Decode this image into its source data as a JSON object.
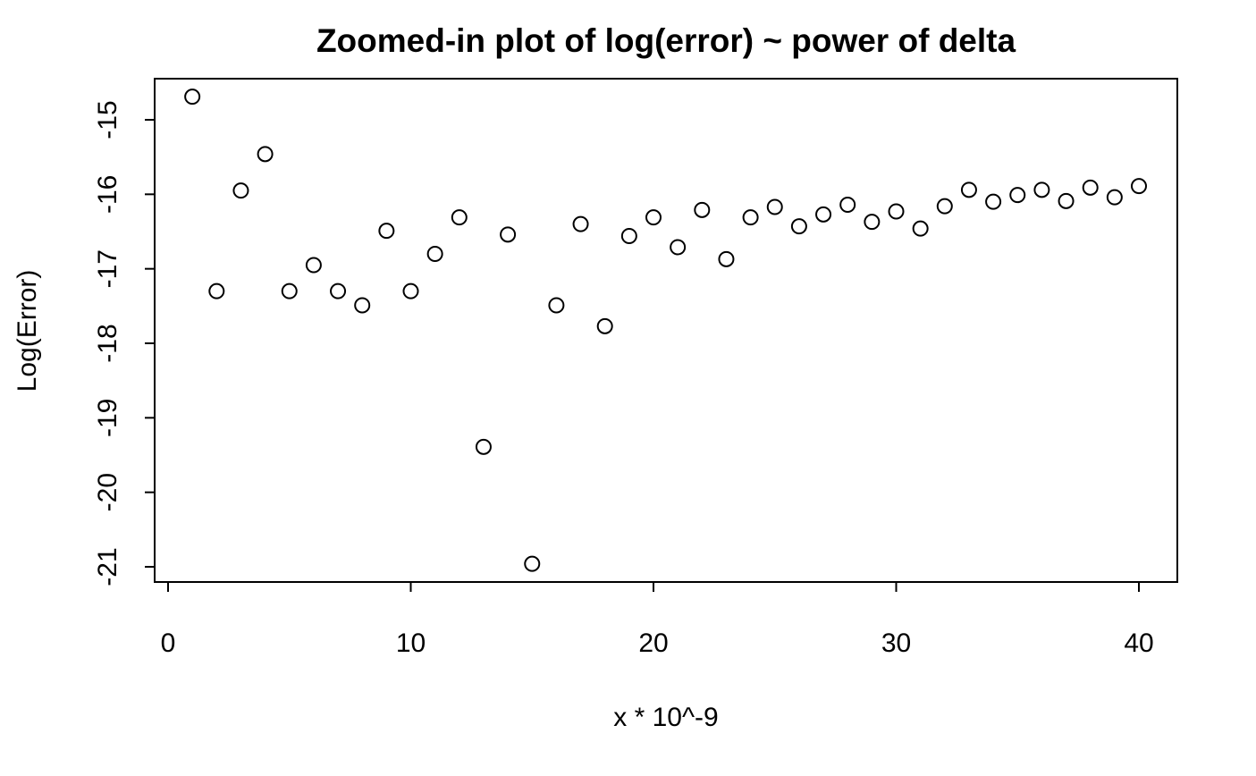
{
  "chart_data": {
    "type": "scatter",
    "title": "Zoomed-in plot of log(error) ~ power of delta",
    "xlabel": "x * 10^-9",
    "ylabel": "Log(Error)",
    "xlim": [
      0,
      40
    ],
    "ylim": [
      -21,
      -15
    ],
    "x_ticks": [
      0,
      10,
      20,
      30,
      40
    ],
    "x_tick_labels": [
      "0",
      "10",
      "20",
      "30",
      "40"
    ],
    "y_ticks": [
      -15,
      -16,
      -17,
      -18,
      -19,
      -20,
      -21
    ],
    "y_tick_labels": [
      "-15",
      "-16",
      "-17",
      "-18",
      "-19",
      "-20",
      "-21"
    ],
    "grid": false,
    "legend": "none",
    "marker": "open-circle",
    "point_color": "#000000",
    "x": [
      1,
      2,
      3,
      4,
      5,
      6,
      7,
      8,
      9,
      10,
      11,
      12,
      13,
      14,
      15,
      16,
      17,
      18,
      19,
      20,
      21,
      22,
      23,
      24,
      25,
      26,
      27,
      28,
      29,
      30,
      31,
      32,
      33,
      34,
      35,
      36,
      37,
      38,
      39,
      40
    ],
    "y": [
      -14.69,
      -17.3,
      -15.95,
      -15.46,
      -17.3,
      -16.95,
      -17.3,
      -17.49,
      -16.49,
      -17.3,
      -16.8,
      -16.31,
      -19.39,
      -16.54,
      -20.96,
      -17.49,
      -16.4,
      -17.77,
      -16.56,
      -16.31,
      -16.71,
      -16.21,
      -16.87,
      -16.31,
      -16.17,
      -16.43,
      -16.27,
      -16.14,
      -16.37,
      -16.23,
      -16.46,
      -16.16,
      -15.94,
      -16.1,
      -16.01,
      -15.94,
      -16.09,
      -15.91,
      -16.04,
      -15.89
    ]
  }
}
